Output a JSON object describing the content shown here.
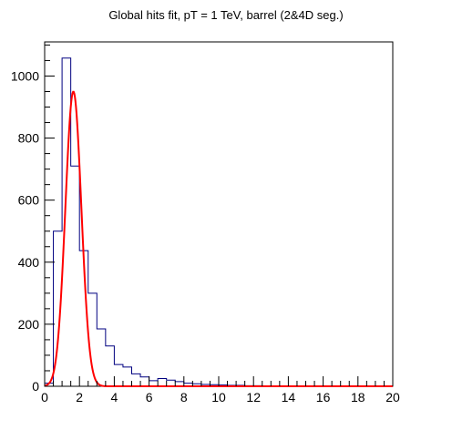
{
  "chart_data": {
    "type": "bar",
    "title": "Global hits fit, pT = 1 TeV, barrel (2&4D seg.)",
    "xlabel": "",
    "ylabel": "",
    "xlim": [
      0,
      20
    ],
    "ylim": [
      0,
      1110
    ],
    "grid": false,
    "legend": "none",
    "x_ticks": [
      0,
      2,
      4,
      6,
      8,
      10,
      12,
      14,
      16,
      18,
      20
    ],
    "y_ticks": [
      0,
      200,
      400,
      600,
      800,
      1000
    ],
    "histogram": {
      "name": "",
      "color": "#000080",
      "bin_width": 0.5,
      "bin_edges_start": 0,
      "values": [
        10,
        500,
        1058,
        710,
        437,
        300,
        185,
        130,
        70,
        62,
        40,
        30,
        18,
        25,
        20,
        15,
        10,
        8,
        6,
        5,
        4,
        3,
        3,
        2,
        2,
        1,
        1,
        1,
        1,
        1,
        1,
        1,
        0,
        0,
        0,
        0,
        0,
        0,
        0,
        0
      ]
    },
    "fit": {
      "name": "",
      "color": "#ff0000",
      "function": "gaussian",
      "amplitude": 950,
      "mean": 1.65,
      "sigma": 0.46,
      "x_range": [
        0,
        20
      ]
    }
  }
}
